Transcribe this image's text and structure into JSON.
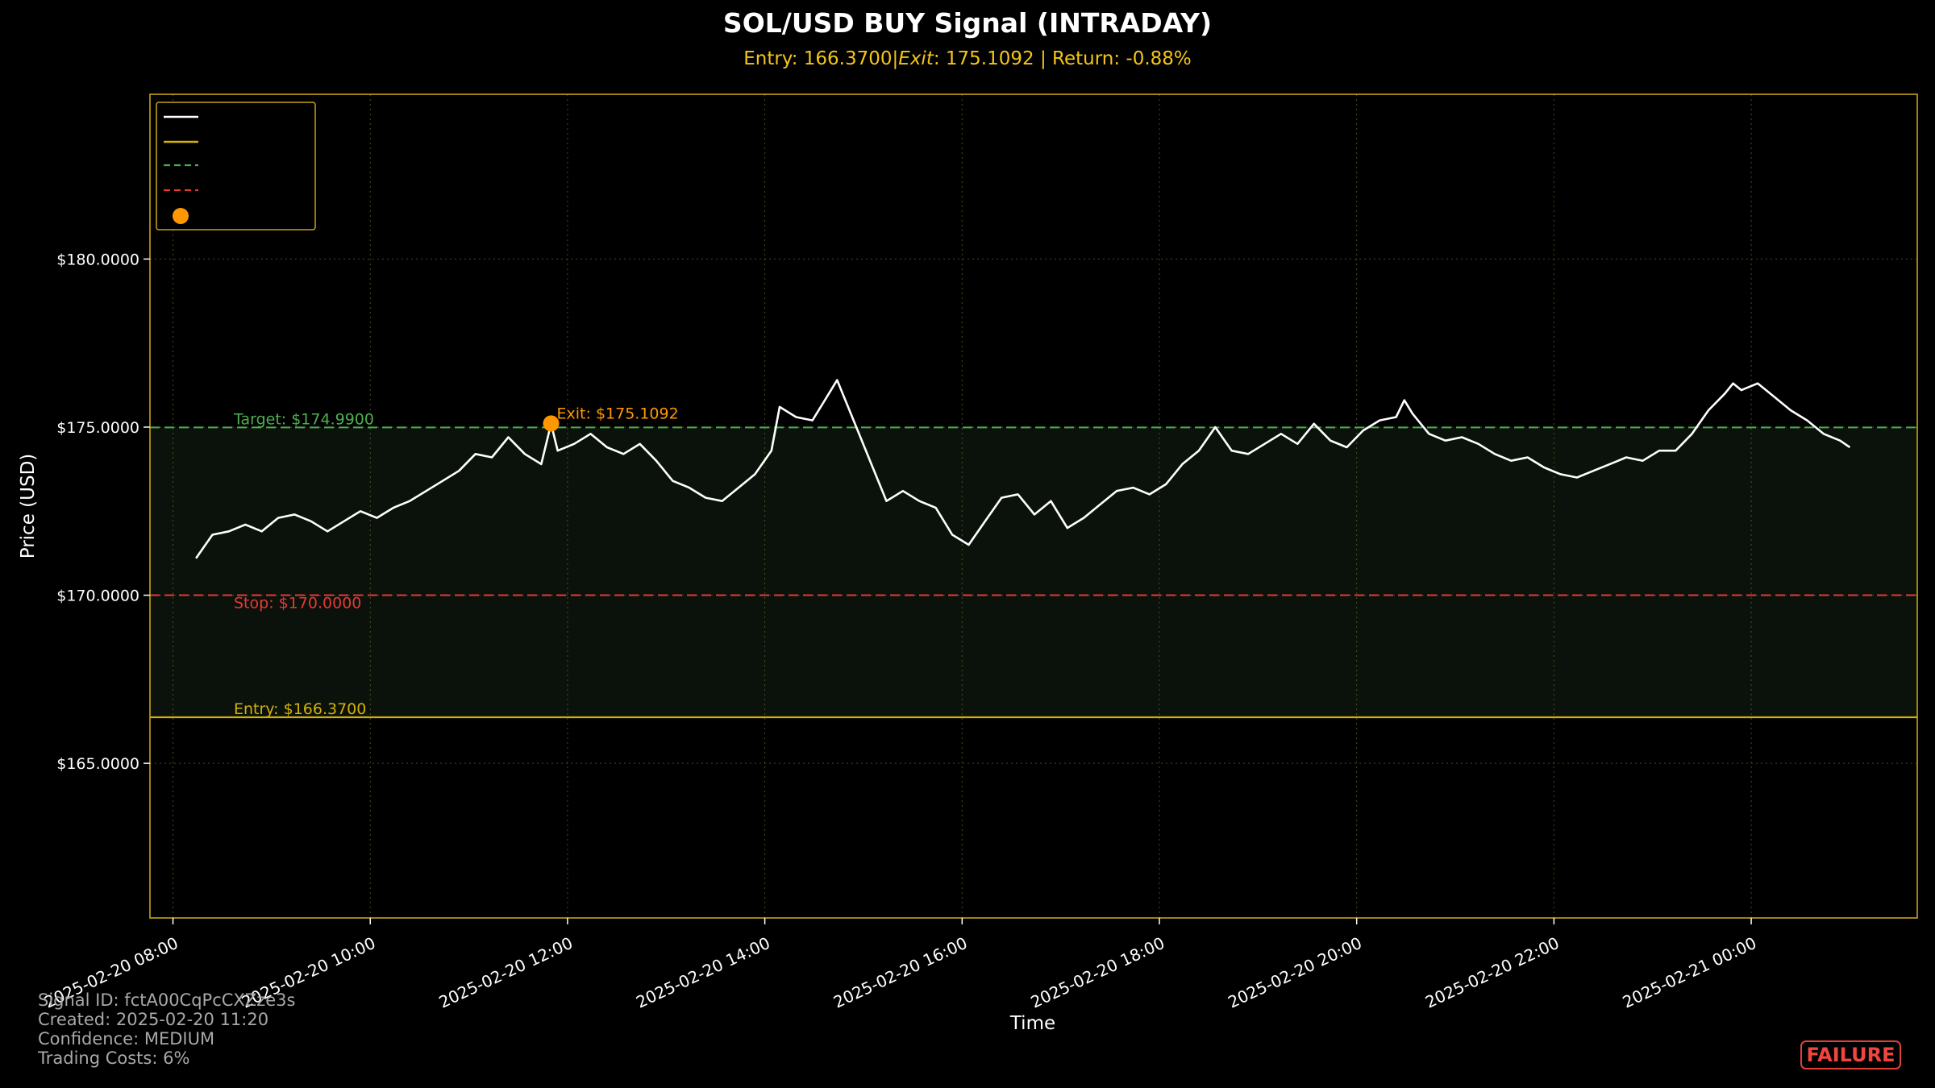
{
  "chart_data": {
    "type": "line",
    "title": "SOL/USD BUY Signal (INTRADAY)",
    "subtitle": "Entry: 166.3700|$Exit$: 175.1092 | Return: -0.88%",
    "subtitle_parts": {
      "entry": "Entry: 166.3700|",
      "exit_label": "Exit",
      "exit_value": ": 175.1092 | Return: -0.88%"
    },
    "xlabel": "Time",
    "ylabel": "Price (USD)",
    "x_range": [
      "2025-02-20 07:46",
      "2025-02-21 01:41"
    ],
    "ylim": [
      160.4,
      184.9
    ],
    "x_ticks": [
      {
        "t": "2025-02-20 08:00",
        "label": "2025-02-20 08:00"
      },
      {
        "t": "2025-02-20 10:00",
        "label": "2025-02-20 10:00"
      },
      {
        "t": "2025-02-20 12:00",
        "label": "2025-02-20 12:00"
      },
      {
        "t": "2025-02-20 14:00",
        "label": "2025-02-20 14:00"
      },
      {
        "t": "2025-02-20 16:00",
        "label": "2025-02-20 16:00"
      },
      {
        "t": "2025-02-20 18:00",
        "label": "2025-02-20 18:00"
      },
      {
        "t": "2025-02-20 20:00",
        "label": "2025-02-20 20:00"
      },
      {
        "t": "2025-02-20 22:00",
        "label": "2025-02-20 22:00"
      },
      {
        "t": "2025-02-21 00:00",
        "label": "2025-02-21 00:00"
      }
    ],
    "y_ticks": [
      {
        "v": 165,
        "label": "$165.0000"
      },
      {
        "v": 170,
        "label": "$170.0000"
      },
      {
        "v": 175,
        "label": "$175.0000"
      },
      {
        "v": 180,
        "label": "$180.0000"
      }
    ],
    "grid": true,
    "legend_placement": "top-left",
    "levels": {
      "target": {
        "value": 174.99,
        "label": "Target: $174.9900",
        "color": "#4caf50"
      },
      "stop": {
        "value": 170.0,
        "label": "Stop: $170.0000",
        "color": "#e53935"
      },
      "entry": {
        "value": 166.37,
        "label": "Entry: $166.3700",
        "color": "#d4b106"
      }
    },
    "exit_point": {
      "t": "2025-02-20 11:50",
      "value": 175.1092,
      "label": "Exit: $175.1092",
      "color": "#ff9800"
    },
    "series": [
      {
        "color": "#ffffff",
        "points": [
          [
            "2025-02-20 08:14",
            171.1
          ],
          [
            "2025-02-20 08:24",
            171.8
          ],
          [
            "2025-02-20 08:34",
            171.9
          ],
          [
            "2025-02-20 08:44",
            172.1
          ],
          [
            "2025-02-20 08:54",
            171.9
          ],
          [
            "2025-02-20 09:04",
            172.3
          ],
          [
            "2025-02-20 09:14",
            172.4
          ],
          [
            "2025-02-20 09:24",
            172.2
          ],
          [
            "2025-02-20 09:34",
            171.9
          ],
          [
            "2025-02-20 09:44",
            172.2
          ],
          [
            "2025-02-20 09:54",
            172.5
          ],
          [
            "2025-02-20 10:04",
            172.3
          ],
          [
            "2025-02-20 10:14",
            172.6
          ],
          [
            "2025-02-20 10:24",
            172.8
          ],
          [
            "2025-02-20 10:34",
            173.1
          ],
          [
            "2025-02-20 10:44",
            173.4
          ],
          [
            "2025-02-20 10:54",
            173.7
          ],
          [
            "2025-02-20 11:04",
            174.2
          ],
          [
            "2025-02-20 11:14",
            174.1
          ],
          [
            "2025-02-20 11:24",
            174.7
          ],
          [
            "2025-02-20 11:34",
            174.2
          ],
          [
            "2025-02-20 11:44",
            173.9
          ],
          [
            "2025-02-20 11:50",
            175.1
          ],
          [
            "2025-02-20 11:54",
            174.3
          ],
          [
            "2025-02-20 12:04",
            174.5
          ],
          [
            "2025-02-20 12:14",
            174.8
          ],
          [
            "2025-02-20 12:24",
            174.4
          ],
          [
            "2025-02-20 12:34",
            174.2
          ],
          [
            "2025-02-20 12:44",
            174.5
          ],
          [
            "2025-02-20 12:54",
            174.0
          ],
          [
            "2025-02-20 13:04",
            173.4
          ],
          [
            "2025-02-20 13:14",
            173.2
          ],
          [
            "2025-02-20 13:24",
            172.9
          ],
          [
            "2025-02-20 13:34",
            172.8
          ],
          [
            "2025-02-20 13:44",
            173.2
          ],
          [
            "2025-02-20 13:54",
            173.6
          ],
          [
            "2025-02-20 14:04",
            174.3
          ],
          [
            "2025-02-20 14:09",
            175.6
          ],
          [
            "2025-02-20 14:19",
            175.3
          ],
          [
            "2025-02-20 14:29",
            175.2
          ],
          [
            "2025-02-20 14:39",
            176.0
          ],
          [
            "2025-02-20 14:44",
            176.4
          ],
          [
            "2025-02-20 14:49",
            175.8
          ],
          [
            "2025-02-20 14:54",
            175.2
          ],
          [
            "2025-02-20 15:04",
            174.0
          ],
          [
            "2025-02-20 15:14",
            172.8
          ],
          [
            "2025-02-20 15:24",
            173.1
          ],
          [
            "2025-02-20 15:34",
            172.8
          ],
          [
            "2025-02-20 15:44",
            172.6
          ],
          [
            "2025-02-20 15:54",
            171.8
          ],
          [
            "2025-02-20 16:04",
            171.5
          ],
          [
            "2025-02-20 16:14",
            172.2
          ],
          [
            "2025-02-20 16:24",
            172.9
          ],
          [
            "2025-02-20 16:34",
            173.0
          ],
          [
            "2025-02-20 16:44",
            172.4
          ],
          [
            "2025-02-20 16:54",
            172.8
          ],
          [
            "2025-02-20 17:04",
            172.0
          ],
          [
            "2025-02-20 17:14",
            172.3
          ],
          [
            "2025-02-20 17:24",
            172.7
          ],
          [
            "2025-02-20 17:34",
            173.1
          ],
          [
            "2025-02-20 17:44",
            173.2
          ],
          [
            "2025-02-20 17:54",
            173.0
          ],
          [
            "2025-02-20 18:04",
            173.3
          ],
          [
            "2025-02-20 18:14",
            173.9
          ],
          [
            "2025-02-20 18:24",
            174.3
          ],
          [
            "2025-02-20 18:34",
            175.0
          ],
          [
            "2025-02-20 18:44",
            174.3
          ],
          [
            "2025-02-20 18:54",
            174.2
          ],
          [
            "2025-02-20 19:04",
            174.5
          ],
          [
            "2025-02-20 19:14",
            174.8
          ],
          [
            "2025-02-20 19:24",
            174.5
          ],
          [
            "2025-02-20 19:34",
            175.1
          ],
          [
            "2025-02-20 19:44",
            174.6
          ],
          [
            "2025-02-20 19:54",
            174.4
          ],
          [
            "2025-02-20 20:04",
            174.9
          ],
          [
            "2025-02-20 20:14",
            175.2
          ],
          [
            "2025-02-20 20:24",
            175.3
          ],
          [
            "2025-02-20 20:29",
            175.8
          ],
          [
            "2025-02-20 20:34",
            175.4
          ],
          [
            "2025-02-20 20:44",
            174.8
          ],
          [
            "2025-02-20 20:54",
            174.6
          ],
          [
            "2025-02-20 21:04",
            174.7
          ],
          [
            "2025-02-20 21:14",
            174.5
          ],
          [
            "2025-02-20 21:24",
            174.2
          ],
          [
            "2025-02-20 21:34",
            174.0
          ],
          [
            "2025-02-20 21:44",
            174.1
          ],
          [
            "2025-02-20 21:54",
            173.8
          ],
          [
            "2025-02-20 22:04",
            173.6
          ],
          [
            "2025-02-20 22:14",
            173.5
          ],
          [
            "2025-02-20 22:24",
            173.7
          ],
          [
            "2025-02-20 22:34",
            173.9
          ],
          [
            "2025-02-20 22:44",
            174.1
          ],
          [
            "2025-02-20 22:54",
            174.0
          ],
          [
            "2025-02-20 23:04",
            174.3
          ],
          [
            "2025-02-20 23:14",
            174.3
          ],
          [
            "2025-02-20 23:24",
            174.8
          ],
          [
            "2025-02-20 23:34",
            175.5
          ],
          [
            "2025-02-20 23:44",
            176.0
          ],
          [
            "2025-02-20 23:49",
            176.3
          ],
          [
            "2025-02-20 23:54",
            176.1
          ],
          [
            "2025-02-21 00:04",
            176.3
          ],
          [
            "2025-02-21 00:14",
            175.9
          ],
          [
            "2025-02-21 00:24",
            175.5
          ],
          [
            "2025-02-21 00:34",
            175.2
          ],
          [
            "2025-02-21 00:44",
            174.8
          ],
          [
            "2025-02-21 00:54",
            174.6
          ],
          [
            "2025-02-21 01:00",
            174.4
          ]
        ]
      }
    ]
  },
  "footer": {
    "signal_id": "Signal ID: fctA00CqPcCXZze3s",
    "created": "Created: 2025-02-20 11:20",
    "confidence": "Confidence: MEDIUM",
    "trading_costs": "Trading Costs: 6%"
  },
  "status": {
    "label": "FAILURE",
    "color": "#f0463e"
  },
  "colors": {
    "background": "#000000",
    "axes_frame": "#c7a31a",
    "zone_fill": "#0b120b",
    "grid": "#6b6b2c"
  }
}
